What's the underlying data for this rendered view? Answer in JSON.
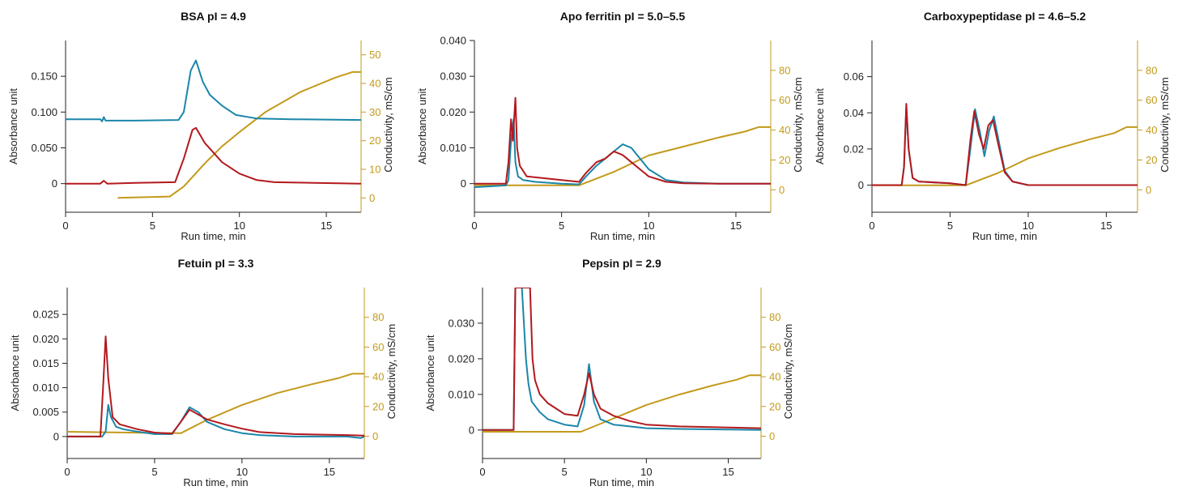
{
  "colors": {
    "blue": "#1a86a9",
    "red": "#b3191e",
    "gold": "#c39a1b",
    "axis": "#222222"
  },
  "chart_data": [
    {
      "type": "line",
      "title": "BSA pI = 4.9",
      "xlabel": "Run time, min",
      "ylabel": "Absorbance unit",
      "y2label": "Conductivity, mS/cm",
      "xlim": [
        0,
        17
      ],
      "ylim": [
        -0.04,
        0.2
      ],
      "y2lim": [
        -5,
        55
      ],
      "xticks": [
        0,
        5,
        10,
        15
      ],
      "xtick_labels": [
        "0",
        "5",
        "10",
        "15"
      ],
      "yticks": [
        0,
        0.05,
        0.1,
        0.15
      ],
      "ytick_labels": [
        "0",
        "0.050",
        "0.100",
        "0.150"
      ],
      "y2ticks": [
        0,
        10,
        20,
        30,
        40,
        50
      ],
      "y2tick_labels": [
        "0",
        "10",
        "20",
        "30",
        "40",
        "50"
      ],
      "grid": false,
      "series": [
        {
          "color": "blue",
          "axis": "left",
          "x": [
            0,
            2,
            2.1,
            2.2,
            2.3,
            4,
            6.5,
            6.8,
            7.2,
            7.5,
            7.9,
            8.3,
            9,
            9.8,
            11,
            13,
            17
          ],
          "y": [
            0.09,
            0.09,
            0.087,
            0.093,
            0.088,
            0.088,
            0.089,
            0.1,
            0.158,
            0.172,
            0.142,
            0.124,
            0.109,
            0.096,
            0.091,
            0.09,
            0.089
          ]
        },
        {
          "color": "red",
          "axis": "left",
          "x": [
            0,
            2,
            2.2,
            2.4,
            4,
            6.3,
            6.8,
            7.3,
            7.5,
            8,
            9,
            10,
            11,
            12,
            17
          ],
          "y": [
            0,
            0,
            0.004,
            0,
            0.001,
            0.002,
            0.035,
            0.075,
            0.078,
            0.057,
            0.03,
            0.014,
            0.005,
            0.002,
            0
          ]
        },
        {
          "color": "gold",
          "axis": "right",
          "x": [
            3,
            6,
            6.8,
            8,
            9,
            10,
            11.5,
            13.5,
            15.5,
            16.5,
            17
          ],
          "y": [
            0,
            0.5,
            4,
            12,
            18,
            23,
            30,
            37,
            42,
            44,
            44
          ]
        }
      ]
    },
    {
      "type": "line",
      "title": "Apo ferritin pI = 5.0–5.5",
      "xlabel": "Run time, min",
      "ylabel": "Absorbance unit",
      "y2label": "Conductivity, mS/cm",
      "xlim": [
        0,
        17
      ],
      "ylim": [
        -0.008,
        0.04
      ],
      "y2lim": [
        -15,
        100
      ],
      "xticks": [
        0,
        5,
        10,
        15
      ],
      "xtick_labels": [
        "0",
        "5",
        "10",
        "15"
      ],
      "yticks": [
        0,
        0.01,
        0.02,
        0.03,
        0.04
      ],
      "ytick_labels": [
        "0",
        "0.010",
        "0.020",
        "0.030",
        "0.040"
      ],
      "y2ticks": [
        0,
        20,
        40,
        60,
        80
      ],
      "y2tick_labels": [
        "0",
        "20",
        "40",
        "60",
        "80"
      ],
      "grid": false,
      "series": [
        {
          "color": "blue",
          "axis": "left",
          "x": [
            0,
            1.8,
            1.95,
            2.1,
            2.25,
            2.35,
            2.5,
            2.8,
            3.5,
            5,
            6,
            6.4,
            7,
            7.5,
            8,
            8.5,
            9,
            9.5,
            10,
            11,
            12,
            14,
            17
          ],
          "y": [
            -0.001,
            -0.0005,
            0.001,
            0.012,
            0.018,
            0.006,
            0.002,
            0.001,
            0.0005,
            0,
            -0.0002,
            0.002,
            0.005,
            0.007,
            0.009,
            0.011,
            0.01,
            0.007,
            0.004,
            0.001,
            0.0003,
            0,
            0
          ]
        },
        {
          "color": "red",
          "axis": "left",
          "x": [
            0,
            1.8,
            1.95,
            2.1,
            2.2,
            2.35,
            2.45,
            2.6,
            3,
            5,
            6,
            6.4,
            7,
            7.5,
            8,
            8.5,
            9,
            9.5,
            10,
            11,
            12,
            14,
            17
          ],
          "y": [
            0,
            0,
            0.006,
            0.018,
            0.012,
            0.024,
            0.01,
            0.005,
            0.002,
            0.001,
            0.0005,
            0.003,
            0.006,
            0.007,
            0.009,
            0.008,
            0.006,
            0.004,
            0.002,
            0.0005,
            0.0001,
            0,
            0
          ]
        },
        {
          "color": "gold",
          "axis": "right",
          "x": [
            0,
            6,
            8,
            10,
            12,
            14,
            15.5,
            16.3,
            17
          ],
          "y": [
            3,
            3,
            12,
            23,
            29,
            35,
            39,
            42,
            42
          ]
        }
      ]
    },
    {
      "type": "line",
      "title": "Carboxypeptidase pI = 4.6–5.2",
      "xlabel": "Run time, min",
      "ylabel": "Absorbance unit",
      "y2label": "Conductivity, mS/cm",
      "xlim": [
        0,
        17
      ],
      "ylim": [
        -0.015,
        0.08
      ],
      "y2lim": [
        -15,
        100
      ],
      "xticks": [
        0,
        5,
        10,
        15
      ],
      "xtick_labels": [
        "0",
        "5",
        "10",
        "15"
      ],
      "yticks": [
        0,
        0.02,
        0.04,
        0.06
      ],
      "ytick_labels": [
        "0",
        "0.02",
        "0.04",
        "0.06"
      ],
      "y2ticks": [
        0,
        20,
        40,
        60,
        80
      ],
      "y2tick_labels": [
        "0",
        "20",
        "40",
        "60",
        "80"
      ],
      "grid": false,
      "series": [
        {
          "color": "blue",
          "axis": "left",
          "x": [
            0,
            1.9,
            2.05,
            2.2,
            2.35,
            2.6,
            3,
            5,
            6,
            6.3,
            6.6,
            6.9,
            7.2,
            7.5,
            7.8,
            8.1,
            8.5,
            9,
            10,
            17
          ],
          "y": [
            0,
            0,
            0.01,
            0.043,
            0.02,
            0.004,
            0.002,
            0.001,
            0,
            0.02,
            0.042,
            0.03,
            0.016,
            0.03,
            0.038,
            0.025,
            0.008,
            0.002,
            0,
            0
          ]
        },
        {
          "color": "red",
          "axis": "left",
          "x": [
            0,
            1.9,
            2.05,
            2.2,
            2.35,
            2.6,
            3,
            5,
            6,
            6.3,
            6.55,
            6.85,
            7.15,
            7.45,
            7.75,
            8.1,
            8.5,
            9,
            10,
            17
          ],
          "y": [
            0,
            0,
            0.01,
            0.045,
            0.02,
            0.004,
            0.002,
            0.001,
            0,
            0.025,
            0.041,
            0.028,
            0.02,
            0.033,
            0.036,
            0.022,
            0.007,
            0.002,
            0,
            0
          ]
        },
        {
          "color": "gold",
          "axis": "right",
          "x": [
            0,
            6,
            8,
            10,
            12,
            14,
            15.5,
            16.3,
            17
          ],
          "y": [
            3,
            3,
            11,
            21,
            28,
            34,
            38,
            42,
            42
          ]
        }
      ]
    },
    {
      "type": "line",
      "title": "Fetuin pI = 3.3",
      "xlabel": "Run time, min",
      "ylabel": "Absorbance unit",
      "y2label": "Conductivity, mS/cm",
      "xlim": [
        0,
        17
      ],
      "ylim": [
        -0.0045,
        0.0305
      ],
      "y2lim": [
        -15,
        100
      ],
      "xticks": [
        0,
        5,
        10,
        15
      ],
      "xtick_labels": [
        "0",
        "5",
        "10",
        "15"
      ],
      "yticks": [
        0,
        0.005,
        0.01,
        0.015,
        0.02,
        0.025
      ],
      "ytick_labels": [
        "0",
        "0.005",
        "0.010",
        "0.015",
        "0.020",
        "0.025"
      ],
      "y2ticks": [
        0,
        20,
        40,
        60,
        80
      ],
      "y2tick_labels": [
        "0",
        "20",
        "40",
        "60",
        "80"
      ],
      "grid": false,
      "series": [
        {
          "color": "blue",
          "axis": "left",
          "x": [
            0,
            2,
            2.2,
            2.35,
            2.5,
            2.8,
            3.2,
            4,
            5,
            6,
            6.5,
            7,
            7.5,
            8,
            9,
            10,
            11,
            13,
            16,
            16.8,
            17
          ],
          "y": [
            0,
            0,
            0.001,
            0.0065,
            0.004,
            0.002,
            0.0015,
            0.001,
            0.0005,
            0.0005,
            0.003,
            0.006,
            0.005,
            0.003,
            0.0015,
            0.0007,
            0.0003,
            0,
            0,
            -0.0003,
            0
          ]
        },
        {
          "color": "red",
          "axis": "left",
          "x": [
            0,
            1.9,
            2.05,
            2.2,
            2.35,
            2.6,
            3,
            4,
            5,
            6,
            6.5,
            7,
            7.5,
            8,
            9,
            10,
            11,
            13,
            16,
            17
          ],
          "y": [
            0,
            0,
            0.01,
            0.0205,
            0.012,
            0.004,
            0.0025,
            0.0015,
            0.0008,
            0.0006,
            0.003,
            0.0055,
            0.0045,
            0.0035,
            0.0025,
            0.0016,
            0.0009,
            0.0005,
            0.0003,
            0.0002
          ]
        },
        {
          "color": "gold",
          "axis": "right",
          "x": [
            0,
            6.5,
            8,
            10,
            12,
            14,
            15.5,
            16.3,
            17
          ],
          "y": [
            3,
            2,
            11,
            21,
            29,
            35,
            39,
            42,
            42
          ]
        }
      ]
    },
    {
      "type": "line",
      "title": "Pepsin pI = 2.9",
      "xlabel": "Run time, min",
      "ylabel": "Absorbance unit",
      "y2label": "Conductivity, mS/cm",
      "xlim": [
        0,
        17
      ],
      "ylim": [
        -0.008,
        0.04
      ],
      "y2lim": [
        -15,
        100
      ],
      "xticks": [
        0,
        5,
        10,
        15
      ],
      "xtick_labels": [
        "0",
        "5",
        "10",
        "15"
      ],
      "yticks": [
        0,
        0.01,
        0.02,
        0.03
      ],
      "ytick_labels": [
        "0",
        "0.010",
        "0.020",
        "0.030"
      ],
      "y2ticks": [
        0,
        20,
        40,
        60,
        80
      ],
      "y2tick_labels": [
        "0",
        "20",
        "40",
        "60",
        "80"
      ],
      "grid": false,
      "series": [
        {
          "color": "blue",
          "axis": "left",
          "x": [
            0,
            1.9,
            2.0,
            2.05,
            2.4,
            2.65,
            2.8,
            3,
            3.5,
            4,
            5,
            5.8,
            6.2,
            6.5,
            6.8,
            7.2,
            8,
            9,
            10,
            12,
            17
          ],
          "y": [
            0,
            0,
            0.04,
            0.04,
            0.04,
            0.02,
            0.013,
            0.008,
            0.005,
            0.003,
            0.0015,
            0.001,
            0.007,
            0.0185,
            0.008,
            0.003,
            0.0015,
            0.001,
            0.0005,
            0.0003,
            0
          ]
        },
        {
          "color": "red",
          "axis": "left",
          "x": [
            0,
            1.9,
            2.0,
            2.05,
            2.9,
            3.05,
            3.2,
            3.5,
            4,
            4.5,
            5,
            5.8,
            6.2,
            6.5,
            6.8,
            7.2,
            8,
            9,
            10,
            12,
            17
          ],
          "y": [
            0,
            0,
            0.04,
            0.04,
            0.04,
            0.02,
            0.014,
            0.01,
            0.0075,
            0.006,
            0.0045,
            0.004,
            0.01,
            0.016,
            0.01,
            0.006,
            0.004,
            0.0025,
            0.0015,
            0.001,
            0.0005
          ]
        },
        {
          "color": "gold",
          "axis": "right",
          "x": [
            0,
            5.5,
            6,
            8,
            10,
            12,
            14,
            15.5,
            16.3,
            17
          ],
          "y": [
            3,
            3,
            3,
            12,
            21,
            28,
            34,
            38,
            41,
            41
          ]
        }
      ]
    }
  ]
}
